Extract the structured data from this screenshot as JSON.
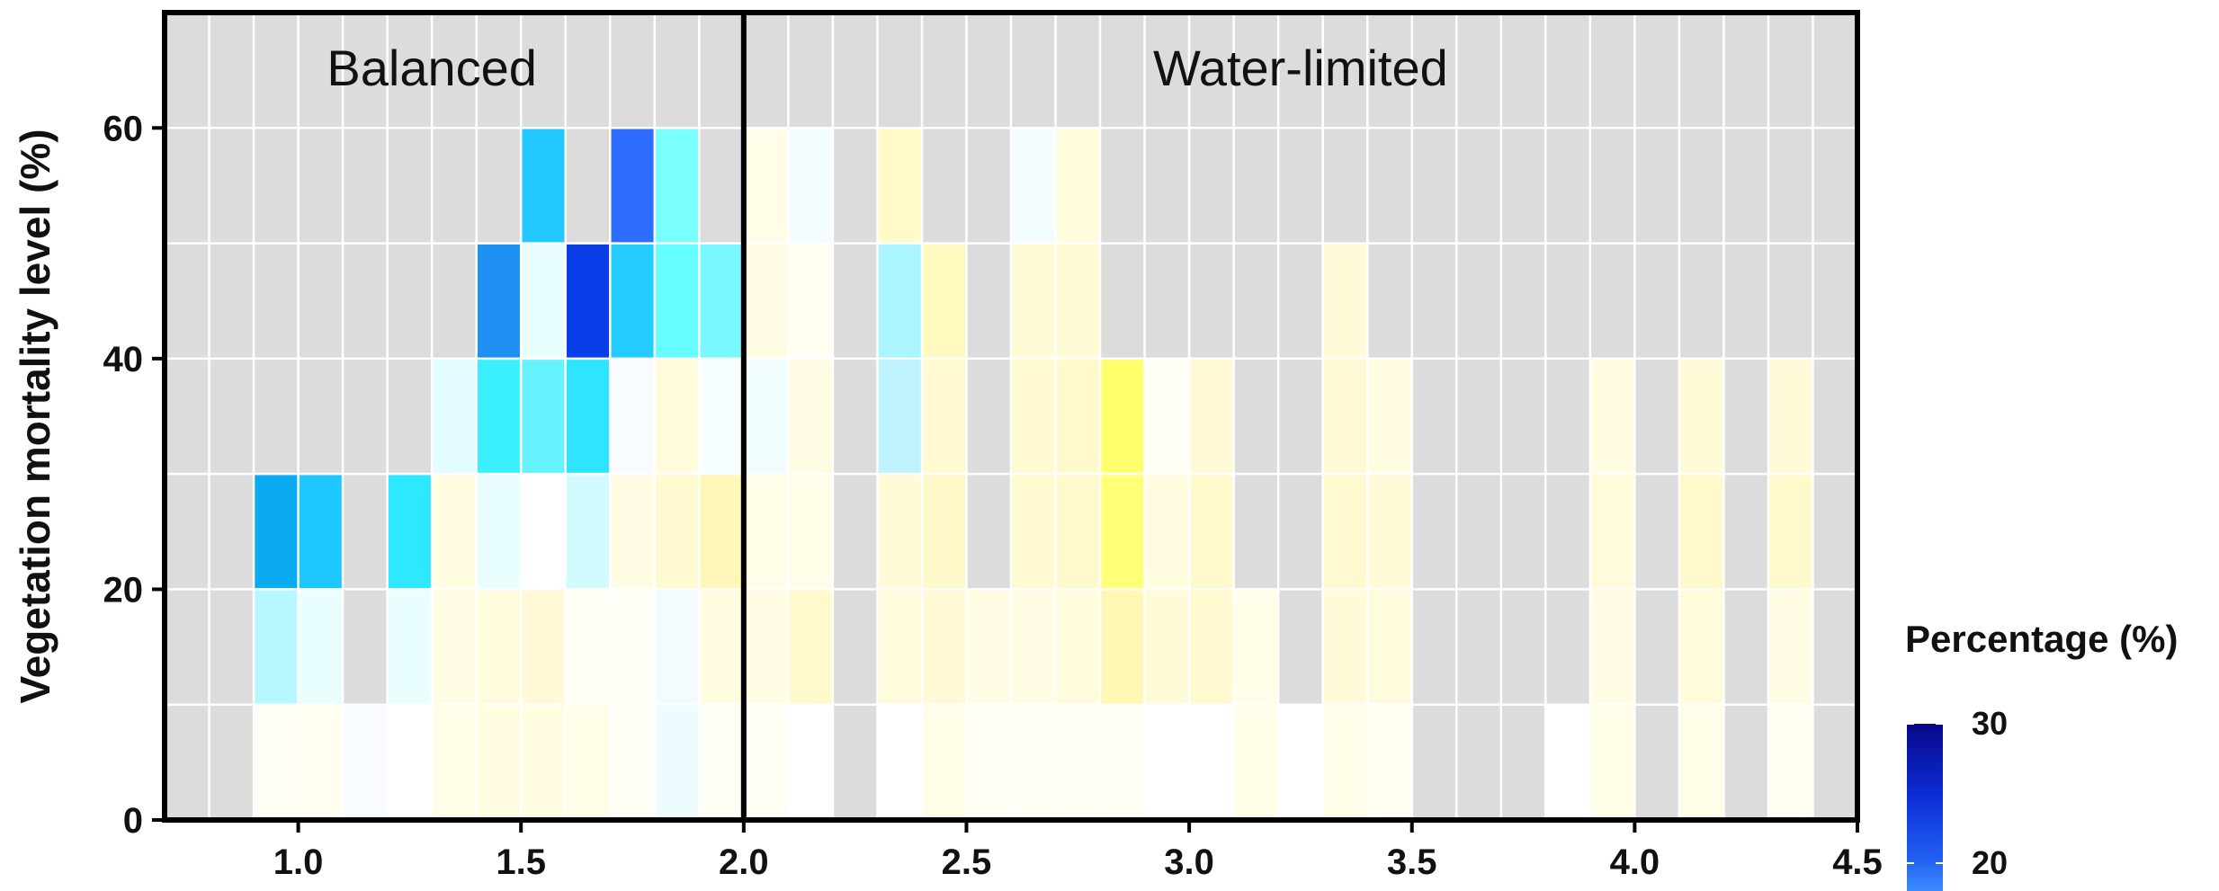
{
  "chart_data": {
    "type": "heatmap",
    "title": "",
    "xlabel": "",
    "ylabel": "Vegetation mortality level (%)",
    "xlim": [
      0.7,
      4.5
    ],
    "ylim": [
      0,
      70
    ],
    "x_ticks": [
      "1.0",
      "1.5",
      "2.0",
      "2.5",
      "3.0",
      "3.5",
      "4.0",
      "4.5"
    ],
    "y_ticks": [
      "0",
      "20",
      "40",
      "60"
    ],
    "x_bin_width": 0.1,
    "y_bin_height": 10,
    "grid": true,
    "panel_background": "#dcdcdc",
    "divider_x": 2.0,
    "regions": [
      {
        "label": "Balanced",
        "x_center": 1.3
      },
      {
        "label": "Water-limited",
        "x_center": 3.25
      }
    ],
    "legend": {
      "title": "Percentage (%)",
      "ticks": [
        "30",
        "20"
      ],
      "min_visible": 18,
      "max": 30,
      "placement": "right"
    },
    "colors": {
      "high": "#08088a",
      "mid_high": "#2a6ef5",
      "mid": "#1ecbff",
      "low": "#ffffff",
      "yellow": "#ffff66"
    },
    "cells": [
      {
        "x": 0.95,
        "y": 5,
        "color": "#fffef5"
      },
      {
        "x": 1.05,
        "y": 5,
        "color": "#fffef0"
      },
      {
        "x": 1.15,
        "y": 5,
        "color": "#f9fcff"
      },
      {
        "x": 1.25,
        "y": 5,
        "color": "#ffffff"
      },
      {
        "x": 1.35,
        "y": 5,
        "color": "#fffde8"
      },
      {
        "x": 1.45,
        "y": 5,
        "color": "#fffce0"
      },
      {
        "x": 1.55,
        "y": 5,
        "color": "#fffce0"
      },
      {
        "x": 1.65,
        "y": 5,
        "color": "#fffde8"
      },
      {
        "x": 1.75,
        "y": 5,
        "color": "#fffef5"
      },
      {
        "x": 1.85,
        "y": 5,
        "color": "#edfcff"
      },
      {
        "x": 1.95,
        "y": 5,
        "color": "#fffef5"
      },
      {
        "x": 2.05,
        "y": 5,
        "color": "#fffef5"
      },
      {
        "x": 2.15,
        "y": 5,
        "color": "#ffffff"
      },
      {
        "x": 2.35,
        "y": 5,
        "color": "#ffffff"
      },
      {
        "x": 2.45,
        "y": 5,
        "color": "#fffde8"
      },
      {
        "x": 2.55,
        "y": 5,
        "color": "#fffef5"
      },
      {
        "x": 2.65,
        "y": 5,
        "color": "#fffef5"
      },
      {
        "x": 2.75,
        "y": 5,
        "color": "#fffef5"
      },
      {
        "x": 2.85,
        "y": 5,
        "color": "#fffef5"
      },
      {
        "x": 2.95,
        "y": 5,
        "color": "#ffffff"
      },
      {
        "x": 3.05,
        "y": 5,
        "color": "#ffffff"
      },
      {
        "x": 3.15,
        "y": 5,
        "color": "#fffde8"
      },
      {
        "x": 3.25,
        "y": 5,
        "color": "#ffffff"
      },
      {
        "x": 3.35,
        "y": 5,
        "color": "#fffde8"
      },
      {
        "x": 3.45,
        "y": 5,
        "color": "#fffef0"
      },
      {
        "x": 3.85,
        "y": 5,
        "color": "#ffffff"
      },
      {
        "x": 3.95,
        "y": 5,
        "color": "#fffde8"
      },
      {
        "x": 4.15,
        "y": 5,
        "color": "#fffde8"
      },
      {
        "x": 4.35,
        "y": 5,
        "color": "#fffef0"
      },
      {
        "x": 0.95,
        "y": 15,
        "color": "#b8f7ff"
      },
      {
        "x": 1.05,
        "y": 15,
        "color": "#e8feff"
      },
      {
        "x": 1.25,
        "y": 15,
        "color": "#e8feff"
      },
      {
        "x": 1.35,
        "y": 15,
        "color": "#fffce3"
      },
      {
        "x": 1.45,
        "y": 15,
        "color": "#fffbdd"
      },
      {
        "x": 1.55,
        "y": 15,
        "color": "#fffad5"
      },
      {
        "x": 1.65,
        "y": 15,
        "color": "#fffef5"
      },
      {
        "x": 1.75,
        "y": 15,
        "color": "#fffef5"
      },
      {
        "x": 1.85,
        "y": 15,
        "color": "#f3fbff"
      },
      {
        "x": 1.95,
        "y": 15,
        "color": "#fffce0"
      },
      {
        "x": 2.05,
        "y": 15,
        "color": "#fffce3"
      },
      {
        "x": 2.15,
        "y": 15,
        "color": "#fff9cc"
      },
      {
        "x": 2.35,
        "y": 15,
        "color": "#fffbdd"
      },
      {
        "x": 2.45,
        "y": 15,
        "color": "#fffad5"
      },
      {
        "x": 2.55,
        "y": 15,
        "color": "#fffce3"
      },
      {
        "x": 2.65,
        "y": 15,
        "color": "#fffce3"
      },
      {
        "x": 2.75,
        "y": 15,
        "color": "#fffbdd"
      },
      {
        "x": 2.85,
        "y": 15,
        "color": "#fff7b3"
      },
      {
        "x": 2.95,
        "y": 15,
        "color": "#fffad8"
      },
      {
        "x": 3.05,
        "y": 15,
        "color": "#fff9cf"
      },
      {
        "x": 3.15,
        "y": 15,
        "color": "#fffde8"
      },
      {
        "x": 3.35,
        "y": 15,
        "color": "#fffad8"
      },
      {
        "x": 3.45,
        "y": 15,
        "color": "#fffbdd"
      },
      {
        "x": 3.95,
        "y": 15,
        "color": "#fffce3"
      },
      {
        "x": 4.15,
        "y": 15,
        "color": "#fffbdb"
      },
      {
        "x": 4.35,
        "y": 15,
        "color": "#fffce3"
      },
      {
        "x": 0.95,
        "y": 25,
        "color": "#0aaaf0"
      },
      {
        "x": 1.05,
        "y": 25,
        "color": "#1ec8ff"
      },
      {
        "x": 1.25,
        "y": 25,
        "color": "#2ee8ff"
      },
      {
        "x": 1.35,
        "y": 25,
        "color": "#fffce0"
      },
      {
        "x": 1.45,
        "y": 25,
        "color": "#e8feff"
      },
      {
        "x": 1.55,
        "y": 25,
        "color": "#ffffff"
      },
      {
        "x": 1.65,
        "y": 25,
        "color": "#d2fbff"
      },
      {
        "x": 1.75,
        "y": 25,
        "color": "#fffce3"
      },
      {
        "x": 1.85,
        "y": 25,
        "color": "#fffad0"
      },
      {
        "x": 1.95,
        "y": 25,
        "color": "#fff6b8"
      },
      {
        "x": 2.05,
        "y": 25,
        "color": "#fffde8"
      },
      {
        "x": 2.15,
        "y": 25,
        "color": "#fffde8"
      },
      {
        "x": 2.35,
        "y": 25,
        "color": "#fffad8"
      },
      {
        "x": 2.45,
        "y": 25,
        "color": "#fff8c8"
      },
      {
        "x": 2.65,
        "y": 25,
        "color": "#fffad0"
      },
      {
        "x": 2.75,
        "y": 25,
        "color": "#fff9cc"
      },
      {
        "x": 2.85,
        "y": 25,
        "color": "#ffff78"
      },
      {
        "x": 2.95,
        "y": 25,
        "color": "#fffce0"
      },
      {
        "x": 3.05,
        "y": 25,
        "color": "#fff9cc"
      },
      {
        "x": 3.35,
        "y": 25,
        "color": "#fff9cf"
      },
      {
        "x": 3.45,
        "y": 25,
        "color": "#fffbd8"
      },
      {
        "x": 3.95,
        "y": 25,
        "color": "#fffbdb"
      },
      {
        "x": 4.15,
        "y": 25,
        "color": "#fff9cc"
      },
      {
        "x": 4.35,
        "y": 25,
        "color": "#fff9cc"
      },
      {
        "x": 1.35,
        "y": 35,
        "color": "#e3fcff"
      },
      {
        "x": 1.45,
        "y": 35,
        "color": "#3af0ff"
      },
      {
        "x": 1.55,
        "y": 35,
        "color": "#66f2ff"
      },
      {
        "x": 1.65,
        "y": 35,
        "color": "#2ee4ff"
      },
      {
        "x": 1.75,
        "y": 35,
        "color": "#f9fcff"
      },
      {
        "x": 1.85,
        "y": 35,
        "color": "#fffbdb"
      },
      {
        "x": 1.95,
        "y": 35,
        "color": "#f7feff"
      },
      {
        "x": 2.05,
        "y": 35,
        "color": "#f0fcff"
      },
      {
        "x": 2.15,
        "y": 35,
        "color": "#fffce3"
      },
      {
        "x": 2.35,
        "y": 35,
        "color": "#bef3ff"
      },
      {
        "x": 2.45,
        "y": 35,
        "color": "#fffad0"
      },
      {
        "x": 2.65,
        "y": 35,
        "color": "#fffad0"
      },
      {
        "x": 2.75,
        "y": 35,
        "color": "#fff9cc"
      },
      {
        "x": 2.85,
        "y": 35,
        "color": "#ffff6e"
      },
      {
        "x": 2.95,
        "y": 35,
        "color": "#fffef5"
      },
      {
        "x": 3.05,
        "y": 35,
        "color": "#fffad5"
      },
      {
        "x": 3.35,
        "y": 35,
        "color": "#fffad5"
      },
      {
        "x": 3.45,
        "y": 35,
        "color": "#fffcdf"
      },
      {
        "x": 3.95,
        "y": 35,
        "color": "#fffcdf"
      },
      {
        "x": 4.15,
        "y": 35,
        "color": "#fffad8"
      },
      {
        "x": 4.35,
        "y": 35,
        "color": "#fffad8"
      },
      {
        "x": 1.45,
        "y": 45,
        "color": "#1e90f2"
      },
      {
        "x": 1.55,
        "y": 45,
        "color": "#e8feff"
      },
      {
        "x": 1.65,
        "y": 45,
        "color": "#0a3ee8"
      },
      {
        "x": 1.75,
        "y": 45,
        "color": "#24ccff"
      },
      {
        "x": 1.85,
        "y": 45,
        "color": "#66ffff"
      },
      {
        "x": 1.95,
        "y": 45,
        "color": "#7af8ff"
      },
      {
        "x": 2.05,
        "y": 45,
        "color": "#fffce3"
      },
      {
        "x": 2.15,
        "y": 45,
        "color": "#fffef0"
      },
      {
        "x": 2.35,
        "y": 45,
        "color": "#aaf5ff"
      },
      {
        "x": 2.45,
        "y": 45,
        "color": "#fff9c0"
      },
      {
        "x": 2.65,
        "y": 45,
        "color": "#fffbd5"
      },
      {
        "x": 2.75,
        "y": 45,
        "color": "#fffbd5"
      },
      {
        "x": 3.35,
        "y": 45,
        "color": "#fffbd8"
      },
      {
        "x": 1.55,
        "y": 55,
        "color": "#22c8ff"
      },
      {
        "x": 1.75,
        "y": 55,
        "color": "#2e6cff"
      },
      {
        "x": 1.85,
        "y": 55,
        "color": "#7affff"
      },
      {
        "x": 2.05,
        "y": 55,
        "color": "#fffde8"
      },
      {
        "x": 2.15,
        "y": 55,
        "color": "#f3fcff"
      },
      {
        "x": 2.35,
        "y": 55,
        "color": "#fffac8"
      },
      {
        "x": 2.65,
        "y": 55,
        "color": "#f3fdff"
      },
      {
        "x": 2.75,
        "y": 55,
        "color": "#fffcdc"
      }
    ]
  }
}
